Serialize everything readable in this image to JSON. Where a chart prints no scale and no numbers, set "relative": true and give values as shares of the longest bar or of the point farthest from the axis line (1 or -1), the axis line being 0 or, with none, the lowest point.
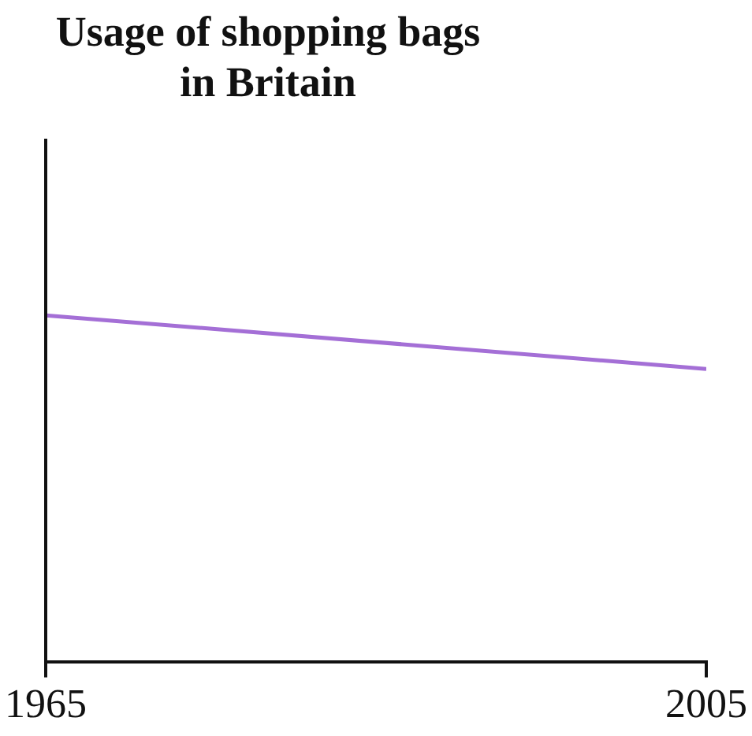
{
  "chart_data": {
    "type": "line",
    "title": "Usage of shopping bags in Britain",
    "relative": true,
    "x": [
      1965,
      2005
    ],
    "xlim": [
      1965,
      2005
    ],
    "xticks": [
      1965,
      2005
    ],
    "series": [
      {
        "color": "#a46fd6",
        "values": [
          1,
          0.845
        ]
      }
    ],
    "grid": false,
    "legend": false,
    "marker": "none",
    "tick_labels": "x"
  }
}
